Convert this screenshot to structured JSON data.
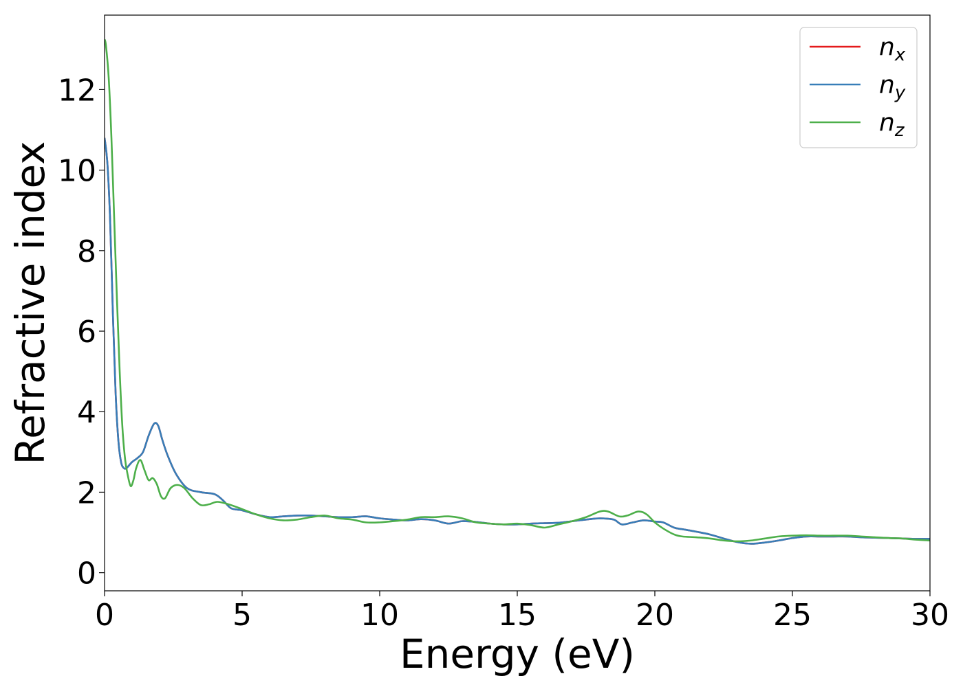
{
  "chart_data": {
    "type": "line",
    "title": "",
    "xlabel": "Energy (eV)",
    "ylabel": "Refractive index",
    "xlim": [
      0,
      30
    ],
    "ylim": [
      -0.45,
      13.85
    ],
    "xticks": [
      0,
      5,
      10,
      15,
      20,
      25,
      30
    ],
    "yticks": [
      0,
      2,
      4,
      6,
      8,
      10,
      12
    ],
    "grid": false,
    "legend": {
      "position": "top-right",
      "entries": [
        {
          "base": "n",
          "sub": "x",
          "color": "#e41a1c"
        },
        {
          "base": "n",
          "sub": "y",
          "color": "#377eb8"
        },
        {
          "base": "n",
          "sub": "z",
          "color": "#4daf4a"
        }
      ]
    },
    "series": [
      {
        "name": "n_x",
        "color": "#e41a1c",
        "x": [
          0,
          0.1,
          0.2,
          0.3,
          0.4,
          0.5,
          0.6,
          0.7,
          0.8,
          1.0,
          1.2,
          1.4,
          1.6,
          1.8,
          1.95,
          2.1,
          2.3,
          2.6,
          3.0,
          3.5,
          4.0,
          4.3,
          4.6,
          5.0,
          5.5,
          6.0,
          6.5,
          7.0,
          7.5,
          8.0,
          8.5,
          9.0,
          9.5,
          10.0,
          10.5,
          11.0,
          11.5,
          12.0,
          12.5,
          13.0,
          13.5,
          14.0,
          14.5,
          15.0,
          15.5,
          16.0,
          16.5,
          17.0,
          17.5,
          18.0,
          18.5,
          18.8,
          19.2,
          19.6,
          20.0,
          20.3,
          20.7,
          21.0,
          21.5,
          22.0,
          22.5,
          23.0,
          23.5,
          24.0,
          24.5,
          25.0,
          25.5,
          26.0,
          26.5,
          27.0,
          27.5,
          28.0,
          28.5,
          29.0,
          29.5,
          30.0
        ],
        "y": [
          10.8,
          10.2,
          8.8,
          6.5,
          4.5,
          3.3,
          2.75,
          2.6,
          2.6,
          2.75,
          2.85,
          3.0,
          3.4,
          3.7,
          3.65,
          3.3,
          2.9,
          2.45,
          2.1,
          2.0,
          1.95,
          1.8,
          1.6,
          1.55,
          1.45,
          1.38,
          1.4,
          1.42,
          1.42,
          1.4,
          1.38,
          1.38,
          1.4,
          1.35,
          1.32,
          1.3,
          1.33,
          1.3,
          1.22,
          1.28,
          1.26,
          1.22,
          1.2,
          1.2,
          1.22,
          1.23,
          1.24,
          1.28,
          1.32,
          1.35,
          1.32,
          1.2,
          1.25,
          1.3,
          1.27,
          1.25,
          1.12,
          1.08,
          1.02,
          0.95,
          0.85,
          0.76,
          0.72,
          0.75,
          0.8,
          0.86,
          0.9,
          0.9,
          0.9,
          0.9,
          0.88,
          0.87,
          0.86,
          0.85,
          0.84,
          0.84
        ]
      },
      {
        "name": "n_y",
        "color": "#377eb8",
        "x": [
          0,
          0.1,
          0.2,
          0.3,
          0.4,
          0.5,
          0.6,
          0.7,
          0.8,
          1.0,
          1.2,
          1.4,
          1.6,
          1.8,
          1.95,
          2.1,
          2.3,
          2.6,
          3.0,
          3.5,
          4.0,
          4.3,
          4.6,
          5.0,
          5.5,
          6.0,
          6.5,
          7.0,
          7.5,
          8.0,
          8.5,
          9.0,
          9.5,
          10.0,
          10.5,
          11.0,
          11.5,
          12.0,
          12.5,
          13.0,
          13.5,
          14.0,
          14.5,
          15.0,
          15.5,
          16.0,
          16.5,
          17.0,
          17.5,
          18.0,
          18.5,
          18.8,
          19.2,
          19.6,
          20.0,
          20.3,
          20.7,
          21.0,
          21.5,
          22.0,
          22.5,
          23.0,
          23.5,
          24.0,
          24.5,
          25.0,
          25.5,
          26.0,
          26.5,
          27.0,
          27.5,
          28.0,
          28.5,
          29.0,
          29.5,
          30.0
        ],
        "y": [
          10.8,
          10.2,
          8.8,
          6.5,
          4.5,
          3.3,
          2.75,
          2.6,
          2.6,
          2.75,
          2.85,
          3.0,
          3.4,
          3.7,
          3.65,
          3.3,
          2.9,
          2.45,
          2.1,
          2.0,
          1.95,
          1.8,
          1.6,
          1.55,
          1.45,
          1.38,
          1.4,
          1.42,
          1.42,
          1.4,
          1.38,
          1.38,
          1.4,
          1.35,
          1.32,
          1.3,
          1.33,
          1.3,
          1.22,
          1.28,
          1.26,
          1.22,
          1.2,
          1.2,
          1.22,
          1.23,
          1.24,
          1.28,
          1.32,
          1.35,
          1.32,
          1.2,
          1.25,
          1.3,
          1.27,
          1.25,
          1.12,
          1.08,
          1.02,
          0.95,
          0.85,
          0.76,
          0.72,
          0.75,
          0.8,
          0.86,
          0.9,
          0.9,
          0.9,
          0.9,
          0.88,
          0.87,
          0.86,
          0.85,
          0.84,
          0.84
        ]
      },
      {
        "name": "n_z",
        "color": "#4daf4a",
        "x": [
          0,
          0.05,
          0.15,
          0.25,
          0.35,
          0.45,
          0.55,
          0.65,
          0.75,
          0.85,
          0.95,
          1.05,
          1.15,
          1.3,
          1.45,
          1.6,
          1.75,
          1.9,
          2.05,
          2.2,
          2.4,
          2.65,
          2.9,
          3.2,
          3.5,
          3.8,
          4.1,
          4.5,
          5.0,
          5.5,
          6.0,
          6.5,
          7.0,
          7.5,
          8.0,
          8.5,
          9.0,
          9.5,
          10.0,
          10.5,
          11.0,
          11.5,
          12.0,
          12.5,
          13.0,
          13.5,
          14.0,
          14.5,
          15.0,
          15.5,
          16.0,
          16.5,
          17.0,
          17.5,
          18.0,
          18.3,
          18.7,
          19.0,
          19.4,
          19.7,
          20.0,
          20.3,
          20.7,
          21.0,
          21.5,
          22.0,
          22.5,
          23.0,
          23.5,
          24.0,
          24.5,
          25.0,
          25.5,
          26.0,
          26.5,
          27.0,
          27.5,
          28.0,
          28.5,
          29.0,
          29.5,
          30.0
        ],
        "y": [
          13.25,
          13.1,
          12.3,
          10.8,
          8.8,
          6.8,
          5.0,
          3.6,
          2.8,
          2.4,
          2.15,
          2.3,
          2.6,
          2.8,
          2.55,
          2.3,
          2.35,
          2.2,
          1.9,
          1.85,
          2.1,
          2.18,
          2.1,
          1.85,
          1.68,
          1.7,
          1.76,
          1.7,
          1.58,
          1.45,
          1.35,
          1.3,
          1.32,
          1.38,
          1.42,
          1.35,
          1.32,
          1.25,
          1.25,
          1.28,
          1.32,
          1.38,
          1.38,
          1.4,
          1.35,
          1.25,
          1.22,
          1.2,
          1.22,
          1.18,
          1.12,
          1.2,
          1.28,
          1.38,
          1.52,
          1.52,
          1.4,
          1.42,
          1.52,
          1.45,
          1.25,
          1.1,
          0.95,
          0.9,
          0.88,
          0.85,
          0.8,
          0.78,
          0.8,
          0.85,
          0.9,
          0.92,
          0.93,
          0.92,
          0.92,
          0.92,
          0.9,
          0.88,
          0.86,
          0.85,
          0.82,
          0.8
        ]
      }
    ]
  }
}
